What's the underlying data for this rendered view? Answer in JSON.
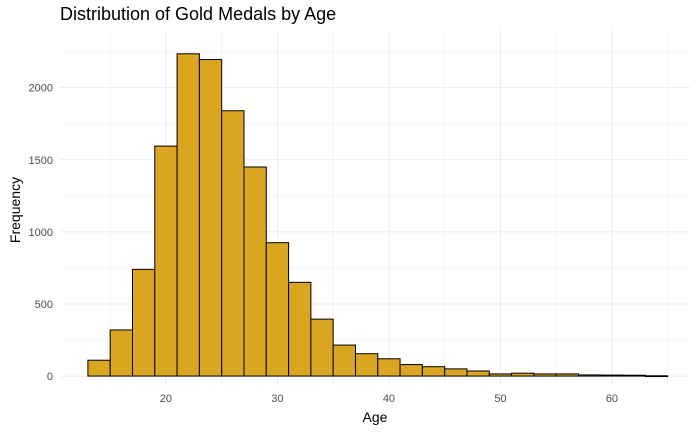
{
  "chart_data": {
    "type": "bar",
    "title": "Distribution of Gold Medals by Age",
    "xlabel": "Age",
    "ylabel": "Frequency",
    "xlim": [
      10.5,
      67
    ],
    "ylim": [
      -55,
      2400
    ],
    "x_ticks": [
      20,
      30,
      40,
      50,
      60
    ],
    "y_ticks": [
      0,
      500,
      1000,
      1500,
      2000
    ],
    "grid": true,
    "bin_width": 2,
    "bins": [
      {
        "x_start": 13,
        "x_end": 15,
        "value": 110
      },
      {
        "x_start": 15,
        "x_end": 17,
        "value": 320
      },
      {
        "x_start": 17,
        "x_end": 19,
        "value": 740
      },
      {
        "x_start": 19,
        "x_end": 21,
        "value": 1595
      },
      {
        "x_start": 21,
        "x_end": 23,
        "value": 2235
      },
      {
        "x_start": 23,
        "x_end": 25,
        "value": 2195
      },
      {
        "x_start": 25,
        "x_end": 27,
        "value": 1840
      },
      {
        "x_start": 27,
        "x_end": 29,
        "value": 1450
      },
      {
        "x_start": 29,
        "x_end": 31,
        "value": 925
      },
      {
        "x_start": 31,
        "x_end": 33,
        "value": 650
      },
      {
        "x_start": 33,
        "x_end": 35,
        "value": 395
      },
      {
        "x_start": 35,
        "x_end": 37,
        "value": 215
      },
      {
        "x_start": 37,
        "x_end": 39,
        "value": 155
      },
      {
        "x_start": 39,
        "x_end": 41,
        "value": 120
      },
      {
        "x_start": 41,
        "x_end": 43,
        "value": 80
      },
      {
        "x_start": 43,
        "x_end": 45,
        "value": 65
      },
      {
        "x_start": 45,
        "x_end": 47,
        "value": 50
      },
      {
        "x_start": 47,
        "x_end": 49,
        "value": 35
      },
      {
        "x_start": 49,
        "x_end": 51,
        "value": 15
      },
      {
        "x_start": 51,
        "x_end": 53,
        "value": 20
      },
      {
        "x_start": 53,
        "x_end": 55,
        "value": 15
      },
      {
        "x_start": 55,
        "x_end": 57,
        "value": 15
      },
      {
        "x_start": 57,
        "x_end": 59,
        "value": 8
      },
      {
        "x_start": 59,
        "x_end": 61,
        "value": 7
      },
      {
        "x_start": 61,
        "x_end": 63,
        "value": 6
      },
      {
        "x_start": 63,
        "x_end": 65,
        "value": 2
      }
    ],
    "colors": {
      "bar_fill": "#DAA520",
      "bar_stroke": "#000000",
      "grid_major": "#EBEBEB",
      "grid_minor": "#F5F5F5",
      "tick_text": "#4D4D4D"
    }
  }
}
